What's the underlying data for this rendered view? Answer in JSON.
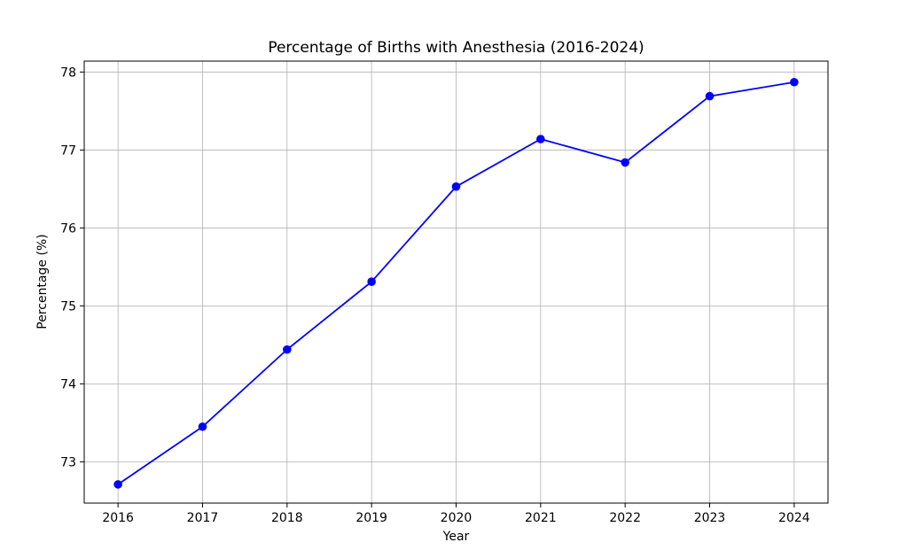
{
  "chart_data": {
    "type": "line",
    "title": "Percentage of Births with Anesthesia (2016-2024)",
    "xlabel": "Year",
    "ylabel": "Percentage (%)",
    "x": [
      2016,
      2017,
      2018,
      2019,
      2020,
      2021,
      2022,
      2023,
      2024
    ],
    "series": [
      {
        "name": "Percentage of births with anesthesia",
        "values": [
          72.71,
          73.45,
          74.44,
          75.31,
          76.53,
          77.14,
          76.84,
          77.69,
          77.87
        ]
      }
    ],
    "xticks": [
      2016,
      2017,
      2018,
      2019,
      2020,
      2021,
      2022,
      2023,
      2024
    ],
    "yticks": [
      73,
      74,
      75,
      76,
      77,
      78
    ],
    "xlim": [
      2015.6,
      2024.4
    ],
    "ylim": [
      72.47,
      78.14
    ],
    "grid": true,
    "legend_position": "none",
    "colors": {
      "line": "#0000ff",
      "marker": "#0000ff",
      "grid": "#b0b0b0",
      "axis": "#000000",
      "background": "#ffffff"
    }
  }
}
